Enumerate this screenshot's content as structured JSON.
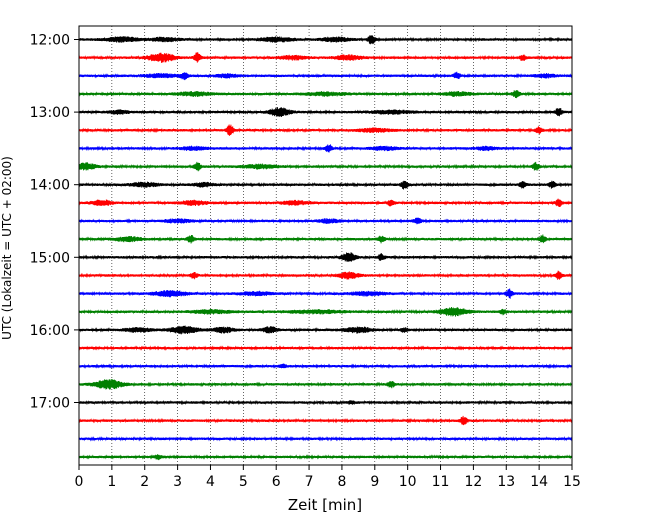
{
  "chart_data": {
    "type": "line",
    "title": "",
    "xlabel": "Zeit  [min]",
    "ylabel": "UTC (Lokalzeit = UTC + 02:00)",
    "xlim": [
      0,
      15
    ],
    "x_ticks": [
      "0",
      "1",
      "2",
      "3",
      "4",
      "5",
      "6",
      "7",
      "8",
      "9",
      "10",
      "11",
      "12",
      "13",
      "14",
      "15"
    ],
    "y_ticks": [
      "12:00",
      "13:00",
      "14:00",
      "15:00",
      "16:00",
      "17:00"
    ],
    "vertical_grid": true,
    "trace_interval_minutes": 15,
    "trace_colors": [
      "#000000",
      "#ff0000",
      "#0000ff",
      "#008000"
    ],
    "traces": [
      {
        "start": "12:00",
        "color": "#000000",
        "bursts": [
          [
            1.3,
            0.5,
            2.2
          ],
          [
            2.6,
            0.4,
            1.8
          ],
          [
            6.0,
            0.5,
            2.0
          ],
          [
            7.8,
            0.4,
            2.0
          ],
          [
            8.9,
            0.1,
            4.5
          ]
        ]
      },
      {
        "start": "12:15",
        "color": "#ff0000",
        "bursts": [
          [
            2.5,
            0.4,
            4.0
          ],
          [
            3.6,
            0.1,
            4.5
          ],
          [
            6.5,
            0.4,
            1.8
          ],
          [
            8.2,
            0.4,
            2.2
          ],
          [
            13.5,
            0.1,
            2.5
          ]
        ]
      },
      {
        "start": "12:30",
        "color": "#0000ff",
        "bursts": [
          [
            2.5,
            0.5,
            1.6
          ],
          [
            3.2,
            0.1,
            3.0
          ],
          [
            4.5,
            0.3,
            1.6
          ],
          [
            11.5,
            0.1,
            3.0
          ],
          [
            14.2,
            0.3,
            1.6
          ]
        ]
      },
      {
        "start": "12:45",
        "color": "#008000",
        "bursts": [
          [
            3.5,
            0.5,
            1.8
          ],
          [
            7.5,
            0.6,
            1.6
          ],
          [
            11.5,
            0.4,
            1.8
          ],
          [
            13.3,
            0.1,
            4.0
          ]
        ]
      },
      {
        "start": "13:00",
        "color": "#000000",
        "bursts": [
          [
            1.2,
            0.3,
            1.6
          ],
          [
            6.1,
            0.3,
            4.0
          ],
          [
            9.5,
            0.6,
            1.6
          ],
          [
            14.6,
            0.1,
            4.0
          ]
        ]
      },
      {
        "start": "13:15",
        "color": "#ff0000",
        "bursts": [
          [
            4.6,
            0.1,
            5.0
          ],
          [
            9.0,
            0.5,
            1.6
          ],
          [
            14.0,
            0.1,
            3.0
          ]
        ]
      },
      {
        "start": "13:30",
        "color": "#0000ff",
        "bursts": [
          [
            3.5,
            0.4,
            1.6
          ],
          [
            7.6,
            0.1,
            3.5
          ],
          [
            9.3,
            0.4,
            1.6
          ],
          [
            12.4,
            0.3,
            1.6
          ]
        ]
      },
      {
        "start": "13:45",
        "color": "#008000",
        "bursts": [
          [
            0.2,
            0.3,
            3.0
          ],
          [
            3.6,
            0.1,
            4.0
          ],
          [
            5.5,
            0.5,
            1.8
          ],
          [
            13.9,
            0.1,
            3.5
          ]
        ]
      },
      {
        "start": "14:00",
        "color": "#000000",
        "bursts": [
          [
            2.0,
            0.4,
            2.0
          ],
          [
            3.8,
            0.3,
            1.8
          ],
          [
            9.9,
            0.1,
            4.0
          ],
          [
            13.5,
            0.1,
            3.0
          ],
          [
            14.4,
            0.1,
            3.0
          ]
        ]
      },
      {
        "start": "14:15",
        "color": "#ff0000",
        "bursts": [
          [
            0.7,
            0.3,
            2.5
          ],
          [
            3.5,
            0.4,
            2.0
          ],
          [
            6.6,
            0.4,
            1.8
          ],
          [
            9.5,
            0.1,
            3.0
          ],
          [
            14.6,
            0.1,
            3.5
          ]
        ]
      },
      {
        "start": "14:30",
        "color": "#0000ff",
        "bursts": [
          [
            3.0,
            0.4,
            1.6
          ],
          [
            7.6,
            0.3,
            1.8
          ],
          [
            10.3,
            0.1,
            3.0
          ]
        ]
      },
      {
        "start": "14:45",
        "color": "#008000",
        "bursts": [
          [
            1.5,
            0.4,
            2.0
          ],
          [
            3.4,
            0.1,
            3.5
          ],
          [
            9.2,
            0.1,
            3.0
          ],
          [
            14.1,
            0.1,
            3.5
          ]
        ]
      },
      {
        "start": "15:00",
        "color": "#000000",
        "bursts": [
          [
            8.2,
            0.2,
            4.5
          ],
          [
            9.2,
            0.1,
            3.0
          ]
        ]
      },
      {
        "start": "15:15",
        "color": "#ff0000",
        "bursts": [
          [
            3.5,
            0.1,
            3.0
          ],
          [
            8.2,
            0.3,
            3.0
          ],
          [
            14.6,
            0.1,
            4.0
          ]
        ]
      },
      {
        "start": "15:30",
        "color": "#0000ff",
        "bursts": [
          [
            2.8,
            0.5,
            2.5
          ],
          [
            5.4,
            0.5,
            1.6
          ],
          [
            8.8,
            0.5,
            1.8
          ],
          [
            13.1,
            0.1,
            4.0
          ]
        ]
      },
      {
        "start": "15:45",
        "color": "#008000",
        "bursts": [
          [
            4.0,
            0.6,
            1.6
          ],
          [
            7.2,
            0.8,
            1.6
          ],
          [
            11.4,
            0.4,
            4.0
          ],
          [
            12.9,
            0.1,
            2.5
          ]
        ]
      },
      {
        "start": "16:00",
        "color": "#000000",
        "bursts": [
          [
            1.8,
            0.4,
            1.8
          ],
          [
            3.2,
            0.4,
            3.5
          ],
          [
            4.4,
            0.3,
            2.5
          ],
          [
            5.8,
            0.2,
            3.0
          ],
          [
            8.5,
            0.4,
            2.5
          ],
          [
            9.9,
            0.1,
            2.0
          ]
        ]
      },
      {
        "start": "16:15",
        "color": "#ff0000",
        "bursts": []
      },
      {
        "start": "16:30",
        "color": "#0000ff",
        "bursts": [
          [
            6.2,
            0.1,
            1.6
          ]
        ]
      },
      {
        "start": "16:45",
        "color": "#008000",
        "bursts": [
          [
            0.9,
            0.4,
            4.5
          ],
          [
            9.5,
            0.1,
            3.0
          ]
        ]
      },
      {
        "start": "17:00",
        "color": "#000000",
        "bursts": [
          [
            8.3,
            0.1,
            1.5
          ]
        ]
      },
      {
        "start": "17:15",
        "color": "#ff0000",
        "bursts": [
          [
            11.7,
            0.1,
            4.0
          ]
        ]
      },
      {
        "start": "17:30",
        "color": "#0000ff",
        "bursts": []
      },
      {
        "start": "17:45",
        "color": "#008000",
        "bursts": [
          [
            2.4,
            0.1,
            2.0
          ]
        ]
      }
    ]
  }
}
